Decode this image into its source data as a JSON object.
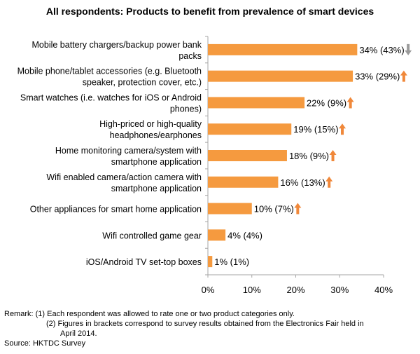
{
  "chart_data": {
    "type": "bar",
    "orientation": "horizontal",
    "title": "All respondents: Products to benefit from prevalence of smart devices",
    "categories": [
      [
        "Mobile battery chargers/backup power bank",
        "packs"
      ],
      [
        "Mobile phone/tablet accessories (e.g. Bluetooth",
        "speaker, protection cover, etc.)"
      ],
      [
        "Smart watches (i.e. watches for iOS or Android",
        "phones)"
      ],
      [
        "High-priced or high-quality",
        "headphones/earphones"
      ],
      [
        "Home monitoring camera/system with",
        "smartphone application"
      ],
      [
        "Wifi enabled camera/action camera with",
        "smartphone application"
      ],
      [
        "Other appliances for smart home application"
      ],
      [
        "Wifi controlled game gear"
      ],
      [
        "iOS/Android TV set-top boxes"
      ]
    ],
    "values": [
      34,
      33,
      22,
      19,
      18,
      16,
      10,
      4,
      1
    ],
    "previous_values": [
      43,
      29,
      9,
      15,
      9,
      13,
      7,
      4,
      1
    ],
    "data_labels": [
      "34% (43%)",
      "33% (29%)",
      "22% (9%)",
      "19% (15%)",
      "18% (9%)",
      "16% (13%)",
      "10% (7%)",
      "4% (4%)",
      "1% (1%)"
    ],
    "trend": [
      "down",
      "up",
      "up",
      "up",
      "up",
      "up",
      "up",
      "none",
      "none"
    ],
    "xlim": [
      0,
      40
    ],
    "xticks": [
      "0%",
      "10%",
      "20%",
      "30%",
      "40%"
    ],
    "grid": false,
    "colors": {
      "bar": "#F59A3F",
      "up_arrow": "#F0883A",
      "down_arrow": "#9B9B9B",
      "axis": "#A6A6A6"
    }
  },
  "remarks": {
    "line1": "Remark: (1) Each respondent was allowed to rate one or two product categories only.",
    "line2": "(2) Figures in brackets correspond to survey results obtained from the Electronics Fair held in",
    "line3": "April 2014.",
    "source": "Source: HKTDC Survey"
  }
}
